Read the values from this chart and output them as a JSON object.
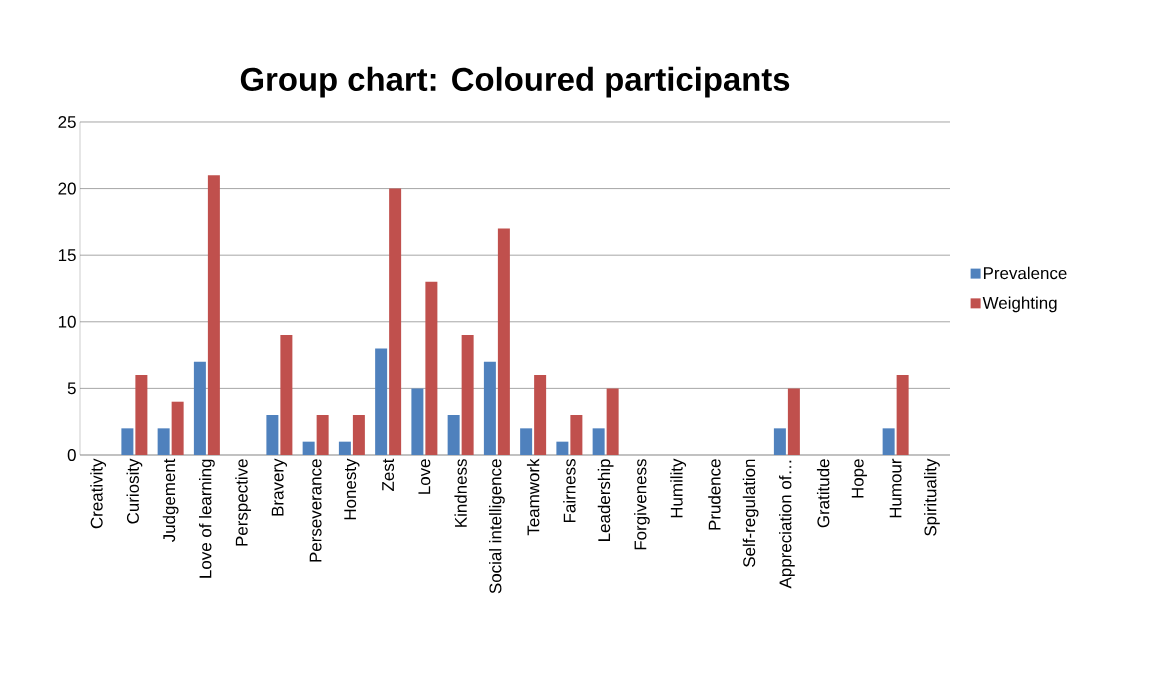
{
  "chart_data": {
    "type": "bar",
    "title": "Group chart: Coloured participants",
    "categories": [
      "Creativity",
      "Curiosity",
      "Judgement",
      "Love of learning",
      "Perspective",
      "Bravery",
      "Perseverance",
      "Honesty",
      "Zest",
      "Love",
      "Kindness",
      "Social intelligence",
      "Teamwork",
      "Fairness",
      "Leadership",
      "Forgiveness",
      "Humility",
      "Prudence",
      "Self-regulation",
      "Appreciation of…",
      "Gratitude",
      "Hope",
      "Humour",
      "Spirituality"
    ],
    "series": [
      {
        "name": "Prevalence",
        "color": "#4f81bd",
        "values": [
          0,
          2,
          2,
          7,
          0,
          3,
          1,
          1,
          8,
          5,
          3,
          7,
          2,
          1,
          2,
          0,
          0,
          0,
          0,
          2,
          0,
          0,
          2,
          0
        ]
      },
      {
        "name": "Weighting",
        "color": "#c0504d",
        "values": [
          0,
          6,
          4,
          21,
          0,
          9,
          3,
          3,
          20,
          13,
          9,
          17,
          6,
          3,
          5,
          0,
          0,
          0,
          0,
          5,
          0,
          0,
          6,
          0
        ]
      }
    ],
    "ylim": [
      0,
      25
    ],
    "yticks": [
      0,
      5,
      10,
      15,
      20,
      25
    ],
    "grid": "y",
    "legend": "right"
  }
}
